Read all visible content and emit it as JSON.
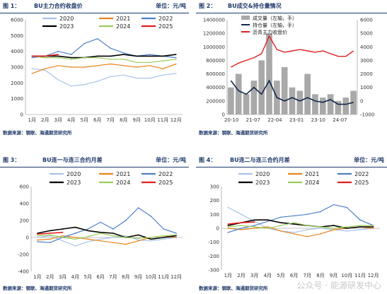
{
  "colors": {
    "header": "#1f3a6b",
    "y2020": "#aac4e6",
    "y2021": "#e8841a",
    "y2022": "#4f7fc8",
    "y2023": "#000000",
    "y2024": "#9acd5a",
    "y2025": "#e01f1f",
    "volume": "#a9a9a9",
    "oi": "#14284b",
    "price": "#e01f1f"
  },
  "panels": [
    {
      "num": "图 1：",
      "title": "BU主力合约收盘价",
      "unit": "单位：元/吨",
      "source": "数据来源：钢联、海通期货研究所"
    },
    {
      "num": "图 2：",
      "title": "BU成交&持仓量情况",
      "unit": "",
      "source": "数据来源：钢联、海通期货研究所"
    },
    {
      "num": "图 3：",
      "title": "BU连一与连三合约月差",
      "unit": "单位：元/吨",
      "source": "数据来源：钢联、海通期货研究所"
    },
    {
      "num": "图 4：",
      "title": "BU连二与连三合约月差",
      "unit": "单位：元/吨",
      "source": "数据来源：钢联、海通期货研究所"
    }
  ],
  "watermark": "公众号 · 能源研发中心",
  "chart_data": [
    {
      "type": "line",
      "months": [
        "1月",
        "2月",
        "3月",
        "4月",
        "5月",
        "6月",
        "7月",
        "8月",
        "9月",
        "10月",
        "11月",
        "12月"
      ],
      "ylim": [
        0,
        6000
      ],
      "yticks": [
        0,
        1000,
        2000,
        3000,
        4000,
        5000,
        6000
      ],
      "legend": [
        "2020",
        "2021",
        "2022",
        "2023",
        "2024",
        "2025"
      ],
      "series": [
        {
          "name": "2020",
          "values": [
            2900,
            2800,
            2200,
            1800,
            1900,
            2100,
            2400,
            2500,
            2300,
            2300,
            2500,
            2600
          ]
        },
        {
          "name": "2021",
          "values": [
            2600,
            2900,
            3100,
            3000,
            3000,
            3100,
            3200,
            3100,
            3000,
            3100,
            2900,
            3200
          ]
        },
        {
          "name": "2022",
          "values": [
            3600,
            3700,
            4000,
            3800,
            4500,
            4800,
            4200,
            3900,
            3700,
            3800,
            3700,
            3600
          ]
        },
        {
          "name": "2023",
          "values": [
            3700,
            3700,
            3700,
            3600,
            3600,
            3700,
            3700,
            3800,
            3700,
            3700,
            3700,
            3800
          ]
        },
        {
          "name": "2024",
          "values": [
            3700,
            3600,
            3600,
            3500,
            3600,
            3600,
            3500,
            3500,
            3300,
            3300,
            3400,
            3500
          ]
        },
        {
          "name": "2025",
          "values": [
            3700,
            3700,
            3800,
            null,
            null,
            null,
            null,
            null,
            null,
            null,
            null,
            null
          ]
        }
      ]
    },
    {
      "type": "bar+line",
      "xticks": [
        "20-10",
        "21-07",
        "22-04",
        "23-01",
        "23-10",
        "24-07"
      ],
      "ylim_left": [
        0,
        1400000
      ],
      "yticks_left": [
        0,
        200000,
        400000,
        600000,
        800000,
        1000000,
        1200000,
        1400000
      ],
      "ylim_right": [
        -1000,
        6000
      ],
      "yticks_right": [
        -1000,
        0,
        1000,
        2000,
        3000,
        4000,
        5000,
        6000
      ],
      "legend": [
        "成交量（左轴，手）",
        "持仓量（左轴，手）",
        "沥青主力收盘价"
      ],
      "series": [
        {
          "name": "成交量（左轴，手）",
          "values": [
            400000,
            600000,
            300000,
            500000,
            800000,
            1200000,
            500000,
            700000,
            400000,
            350000,
            600000,
            300000,
            250000,
            300000,
            200000,
            250000,
            350000
          ]
        },
        {
          "name": "持仓量（左轴，手）",
          "values": [
            500000,
            350000,
            300000,
            400000,
            300000,
            500000,
            250000,
            200000,
            250000,
            200000,
            250000,
            200000,
            180000,
            220000,
            150000,
            150000,
            180000
          ]
        },
        {
          "name": "沥青主力收盘价",
          "values": [
            2500,
            2800,
            3000,
            3200,
            3500,
            4800,
            3800,
            3600,
            3700,
            3800,
            3700,
            3600,
            3700,
            3500,
            3300,
            3300,
            3700
          ]
        }
      ]
    },
    {
      "type": "line",
      "months": [
        "1月",
        "2月",
        "3月",
        "4月",
        "5月",
        "6月",
        "7月",
        "8月",
        "9月",
        "10月",
        "11月",
        "12月"
      ],
      "ylim": [
        -400,
        600
      ],
      "yticks": [
        -400,
        -200,
        0,
        200,
        400,
        600
      ],
      "legend": [
        "2020",
        "2021",
        "2022",
        "2023",
        "2024",
        "2025"
      ],
      "series": [
        {
          "name": "2020",
          "values": [
            0,
            20,
            -40,
            -100,
            -50,
            -20,
            0,
            20,
            -30,
            -40,
            -20,
            0
          ]
        },
        {
          "name": "2021",
          "values": [
            -30,
            -20,
            20,
            0,
            -20,
            -40,
            -60,
            -80,
            -40,
            0,
            20,
            0
          ]
        },
        {
          "name": "2022",
          "values": [
            -50,
            -60,
            0,
            50,
            100,
            180,
            100,
            200,
            350,
            250,
            100,
            50
          ]
        },
        {
          "name": "2023",
          "values": [
            50,
            80,
            100,
            120,
            80,
            60,
            50,
            0,
            30,
            -20,
            0,
            20
          ]
        },
        {
          "name": "2024",
          "values": [
            20,
            30,
            0,
            -20,
            10,
            50,
            20,
            0,
            -10,
            0,
            20,
            30
          ]
        },
        {
          "name": "2025",
          "values": [
            40,
            50,
            60,
            null,
            null,
            null,
            null,
            null,
            null,
            null,
            null,
            null
          ]
        }
      ]
    },
    {
      "type": "line",
      "months": [
        "1月",
        "2月",
        "3月",
        "4月",
        "5月",
        "6月",
        "7月",
        "8月",
        "9月",
        "10月",
        "11月",
        "12月"
      ],
      "ylim": [
        -300,
        300
      ],
      "yticks": [
        -300,
        -200,
        -100,
        0,
        100,
        200,
        300
      ],
      "legend": [
        "2020",
        "2021",
        "2022",
        "2023",
        "2024",
        "2025"
      ],
      "series": [
        {
          "name": "2020",
          "values": [
            150,
            100,
            50,
            0,
            -20,
            -30,
            -10,
            0,
            -10,
            -20,
            -10,
            0
          ]
        },
        {
          "name": "2021",
          "values": [
            0,
            -10,
            0,
            10,
            -20,
            -40,
            -60,
            -40,
            -10,
            0,
            10,
            0
          ]
        },
        {
          "name": "2022",
          "values": [
            -30,
            0,
            20,
            50,
            80,
            90,
            100,
            120,
            170,
            150,
            60,
            20
          ]
        },
        {
          "name": "2023",
          "values": [
            20,
            40,
            60,
            60,
            40,
            30,
            20,
            10,
            20,
            0,
            10,
            10
          ]
        },
        {
          "name": "2024",
          "values": [
            10,
            20,
            10,
            0,
            20,
            40,
            20,
            10,
            0,
            10,
            20,
            20
          ]
        },
        {
          "name": "2025",
          "values": [
            30,
            40,
            45,
            null,
            null,
            null,
            null,
            null,
            null,
            null,
            null,
            null
          ]
        }
      ]
    }
  ]
}
